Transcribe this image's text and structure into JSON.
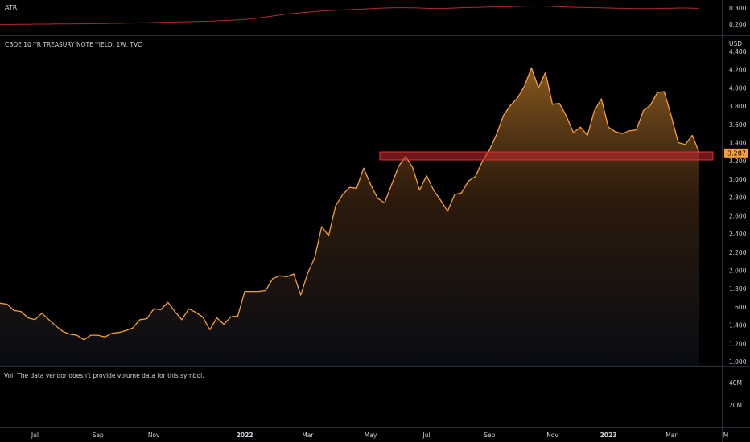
{
  "atr_panel": {
    "label": "ATR",
    "ticks": [
      "0.300",
      "0.200"
    ]
  },
  "main_panel": {
    "title": "CBOE 10 YR TREASURY NOTE YIELD, 1W, TVC",
    "currency": "USD",
    "ticks": [
      "4.400",
      "4.200",
      "4.000",
      "3.800",
      "3.600",
      "3.400",
      "3.200",
      "3.000",
      "2.800",
      "2.600",
      "2.400",
      "2.200",
      "2.000",
      "1.800",
      "1.600",
      "1.400",
      "1.200",
      "1.000"
    ],
    "last_price": "3.287"
  },
  "volume_panel": {
    "note": "Vol: The data vendor doesn't provide volume data for this symbol.",
    "ticks": [
      "40M",
      "20M"
    ]
  },
  "time_axis": {
    "labels": [
      "Jul",
      "Sep",
      "Nov",
      "2022",
      "Mar",
      "May",
      "Jul",
      "Sep",
      "Nov",
      "2023",
      "Mar",
      "M"
    ]
  },
  "colors": {
    "background": "#000000",
    "line": "#f7a035",
    "atr_line": "#b22833",
    "zone_fill": "#c8282f",
    "price_badge": "#f7a035"
  },
  "chart_data": {
    "type": "area",
    "title": "CBOE 10 YR TREASURY NOTE YIELD, 1W, TVC",
    "ylabel": "USD",
    "ylim": [
      0.95,
      4.45
    ],
    "x_ticks": [
      "Jul",
      "Sep",
      "Nov",
      "2022",
      "Mar",
      "May",
      "Jul",
      "Sep",
      "Nov",
      "2023",
      "Mar",
      "M"
    ],
    "values": [
      1.64,
      1.63,
      1.56,
      1.55,
      1.48,
      1.46,
      1.53,
      1.46,
      1.39,
      1.33,
      1.3,
      1.29,
      1.24,
      1.29,
      1.29,
      1.27,
      1.31,
      1.32,
      1.34,
      1.37,
      1.46,
      1.47,
      1.58,
      1.57,
      1.65,
      1.55,
      1.46,
      1.58,
      1.54,
      1.49,
      1.35,
      1.48,
      1.41,
      1.49,
      1.5,
      1.77,
      1.77,
      1.77,
      1.78,
      1.91,
      1.94,
      1.93,
      1.96,
      1.73,
      1.97,
      2.14,
      2.48,
      2.38,
      2.71,
      2.83,
      2.91,
      2.9,
      3.12,
      2.94,
      2.79,
      2.74,
      2.94,
      3.14,
      3.25,
      3.13,
      2.88,
      3.04,
      2.88,
      2.77,
      2.65,
      2.83,
      2.85,
      2.98,
      3.03,
      3.2,
      3.32,
      3.49,
      3.7,
      3.81,
      3.89,
      4.02,
      4.22,
      4.0,
      4.17,
      3.82,
      3.83,
      3.69,
      3.51,
      3.57,
      3.48,
      3.75,
      3.88,
      3.57,
      3.52,
      3.5,
      3.53,
      3.54,
      3.75,
      3.81,
      3.95,
      3.96,
      3.69,
      3.4,
      3.38,
      3.48,
      3.287
    ],
    "atr_values": [
      0.197,
      0.197,
      0.198,
      0.199,
      0.199,
      0.2,
      0.2,
      0.2,
      0.201,
      0.201,
      0.201,
      0.202,
      0.202,
      0.203,
      0.203,
      0.204,
      0.205,
      0.205,
      0.206,
      0.207,
      0.208,
      0.209,
      0.21,
      0.211,
      0.212,
      0.213,
      0.214,
      0.215,
      0.216,
      0.217,
      0.218,
      0.22,
      0.222,
      0.224,
      0.226,
      0.229,
      0.233,
      0.238,
      0.244,
      0.25,
      0.256,
      0.262,
      0.266,
      0.27,
      0.274,
      0.278,
      0.281,
      0.284,
      0.286,
      0.288,
      0.29,
      0.292,
      0.294,
      0.296,
      0.298,
      0.3,
      0.301,
      0.302,
      0.302,
      0.301,
      0.3,
      0.298,
      0.297,
      0.297,
      0.298,
      0.3,
      0.302,
      0.303,
      0.304,
      0.305,
      0.306,
      0.307,
      0.308,
      0.309,
      0.31,
      0.311,
      0.312,
      0.313,
      0.312,
      0.31,
      0.308,
      0.306,
      0.305,
      0.304,
      0.303,
      0.302,
      0.301,
      0.3,
      0.299,
      0.298,
      0.297,
      0.296,
      0.296,
      0.296,
      0.297,
      0.298,
      0.299,
      0.3,
      0.3,
      0.299,
      0.298
    ],
    "atr_ylim": [
      0.15,
      0.33
    ],
    "support_zone": [
      3.22,
      3.29
    ],
    "last_price": 3.287,
    "grid": false,
    "legend": "none"
  }
}
